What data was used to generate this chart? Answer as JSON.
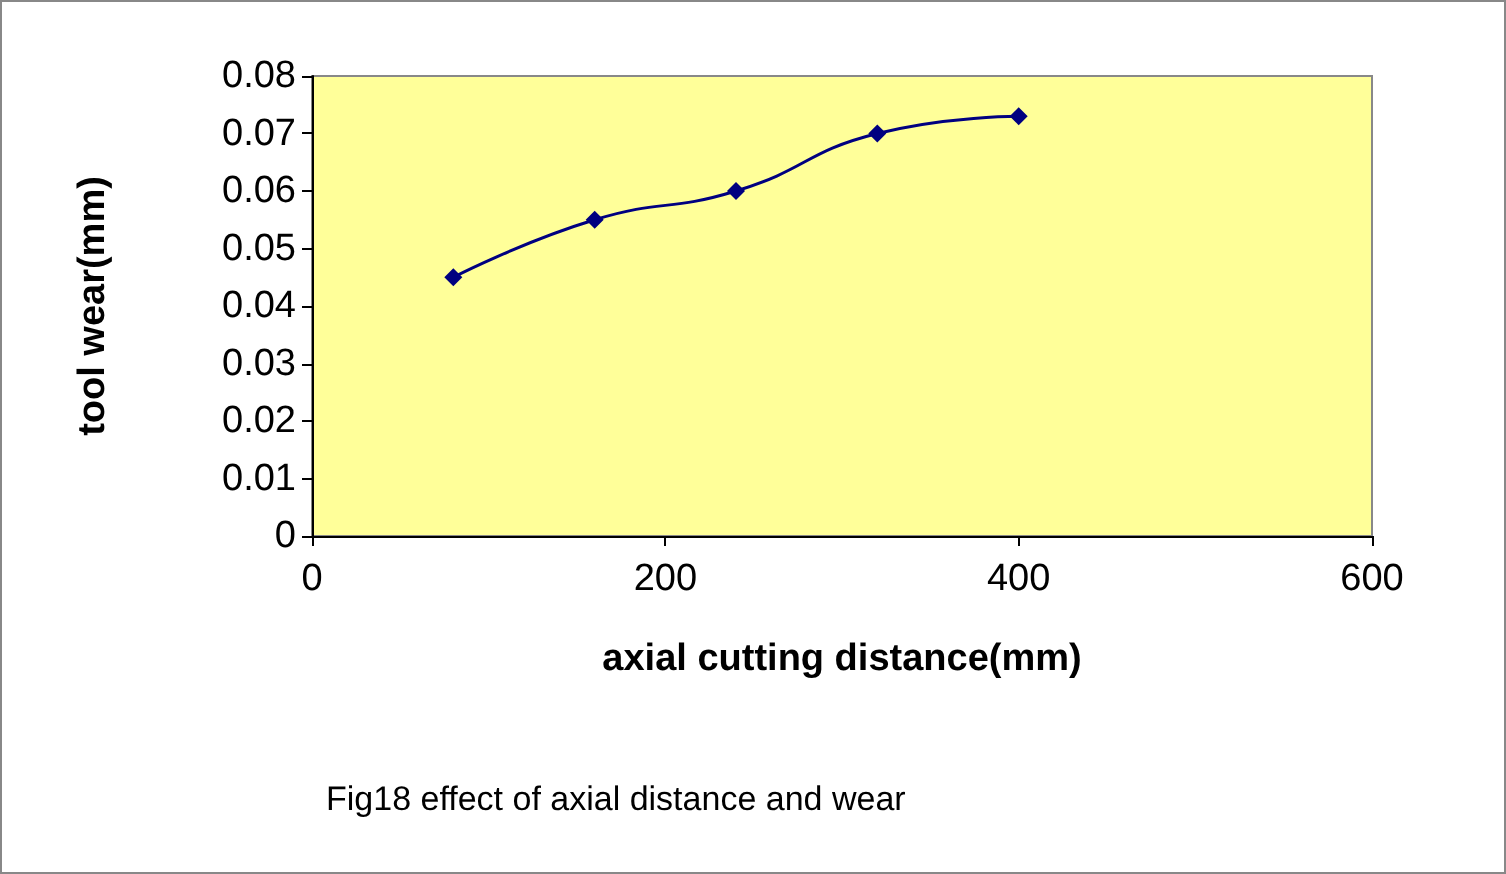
{
  "chart_data": {
    "type": "line",
    "xlabel": "axial cutting distance(mm)",
    "ylabel": "tool wear(mm)",
    "x": [
      80,
      160,
      240,
      320,
      400
    ],
    "series": [
      {
        "color": "#000080",
        "values": [
          0.045,
          0.055,
          0.06,
          0.07,
          0.073
        ]
      }
    ],
    "xlim": [
      0,
      600
    ],
    "xticks": [
      0,
      200,
      400,
      600
    ],
    "ylim": [
      0,
      0.08
    ],
    "yticks": [
      0,
      0.01,
      0.02,
      0.03,
      0.04,
      0.05,
      0.06,
      0.07,
      0.08
    ],
    "grid": false,
    "marker": "diamond",
    "line_style": "solid",
    "annotations": [
      "Fig18 effect of axial distance and wear"
    ]
  }
}
